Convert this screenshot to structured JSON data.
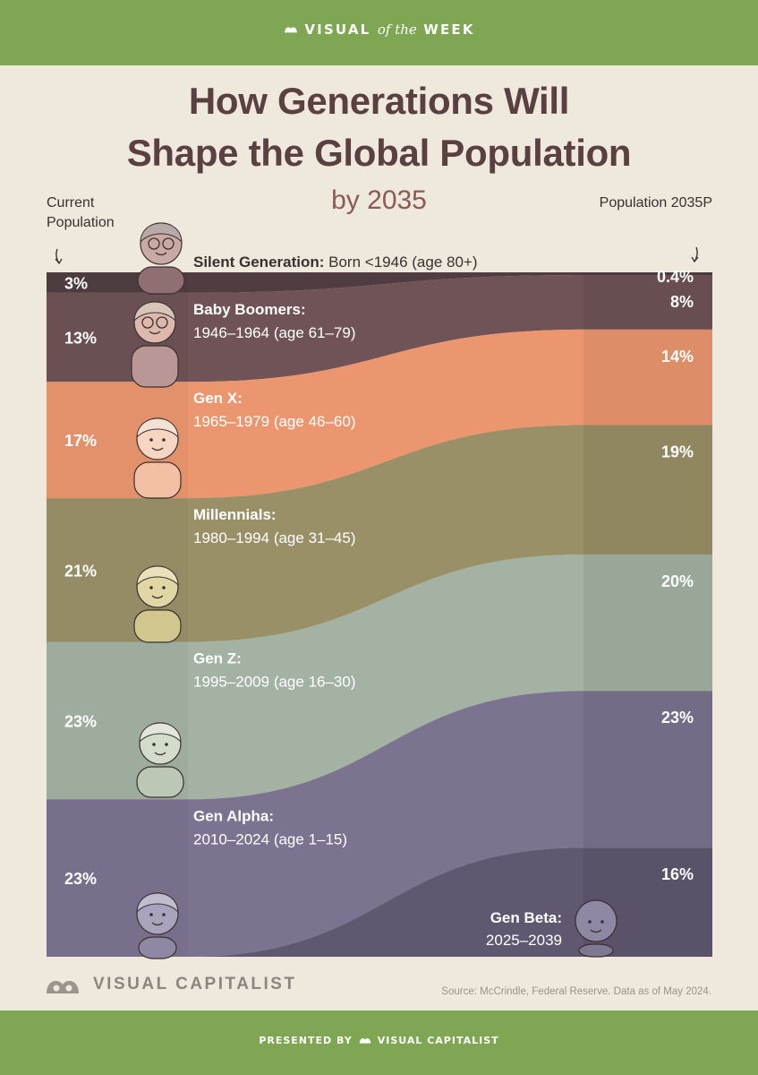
{
  "header": {
    "brand_prefix": "VISUAL",
    "brand_middle": "of the",
    "brand_suffix": "WEEK"
  },
  "title_line1": "How Generations Will",
  "title_line2": "Shape the Global Population",
  "subtitle": "by 2035",
  "left_heading": "Current Population",
  "right_heading": "Population 2035P",
  "chart_data": {
    "type": "area",
    "title": "How Generations Will Shape the Global Population",
    "subtitle": "by 2035",
    "x": [
      "Current Population",
      "Population 2035P"
    ],
    "unit": "%",
    "series": [
      {
        "name": "Silent Generation",
        "label": "Born <1946 (age 80+)",
        "values": [
          3,
          0.4
        ],
        "labels": [
          "3%",
          "0.4%"
        ],
        "color": "#4f3d42",
        "text_color": "#ffffff",
        "figure": "silent-figure"
      },
      {
        "name": "Baby Boomers",
        "label": "1946–1964 (age 61–79)",
        "values": [
          13,
          8
        ],
        "labels": [
          "13%",
          "8%"
        ],
        "color": "#6f5356",
        "text_color": "#ffffff",
        "figure": "boomer-figure"
      },
      {
        "name": "Gen X",
        "label": "1965–1979 (age 46–60)",
        "values": [
          17,
          14
        ],
        "labels": [
          "17%",
          "14%"
        ],
        "color": "#eb966e",
        "text_color": "#ffffff",
        "figure": "genx-figure"
      },
      {
        "name": "Millennials",
        "label": "1980–1994 (age 31–45)",
        "values": [
          21,
          19
        ],
        "labels": [
          "21%",
          "19%"
        ],
        "color": "#9a9068",
        "text_color": "#ffffff",
        "figure": "millennial-figure"
      },
      {
        "name": "Gen Z",
        "label": "1995–2009 (age 16–30)",
        "values": [
          23,
          20
        ],
        "labels": [
          "23%",
          "20%"
        ],
        "color": "#a3b2a2",
        "text_color": "#ffffff",
        "figure": "genz-figure"
      },
      {
        "name": "Gen Alpha",
        "label": "2010–2024 (age 1–15)",
        "values": [
          23,
          23
        ],
        "labels": [
          "23%",
          "23%"
        ],
        "color": "#7b7390",
        "text_color": "#ffffff",
        "figure": "genalpha-figure"
      },
      {
        "name": "Gen Beta",
        "label": "2025–2039",
        "values": [
          0,
          16
        ],
        "labels": [
          "",
          "16%"
        ],
        "color": "#5f5870",
        "text_color": "#ffffff",
        "figure": "genbeta-figure"
      }
    ]
  },
  "footer": {
    "brand": "VISUAL CAPITALIST",
    "source": "Source: McCrindle, Federal Reserve. Data as of May 2024.",
    "presented_by": "PRESENTED BY",
    "presented_brand": "VISUAL CAPITALIST"
  },
  "colors": {
    "band": "#7ea653",
    "background": "#efe8dc",
    "title": "#5a4040"
  }
}
